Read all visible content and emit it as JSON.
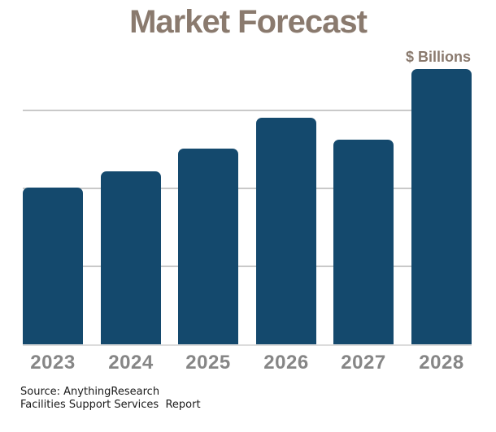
{
  "chart_data": {
    "type": "bar",
    "title": "Market Forecast",
    "unit_label": "$ Billions",
    "xlabel": "",
    "ylabel": "",
    "categories": [
      "2023",
      "2024",
      "2025",
      "2026",
      "2027",
      "2028"
    ],
    "values": [
      2.01,
      2.22,
      2.51,
      2.91,
      2.62,
      3.53
    ],
    "values_note": "Y axis has no numeric tick labels; values are estimated in gridline units (1 unit = one gridline spacing). Steady growth each year except a dip from 2026 to 2027, then a large jump in 2028.",
    "ylim": [
      0,
      3.8
    ],
    "gridlines_at": [
      1,
      2,
      3
    ],
    "grid": true,
    "legend": false,
    "colors": {
      "bar": "#14496d",
      "title": "#8a7a6e",
      "unit_label": "#8a7a6e",
      "tick_label": "#868686",
      "gridline": "#c9c9c9",
      "baseline": "#dcdcdc"
    }
  },
  "footer": {
    "source_line1": "Source: AnythingResearch",
    "source_line2": "Facilities Support Services  Report",
    "text_color": "#1a1a1a"
  }
}
